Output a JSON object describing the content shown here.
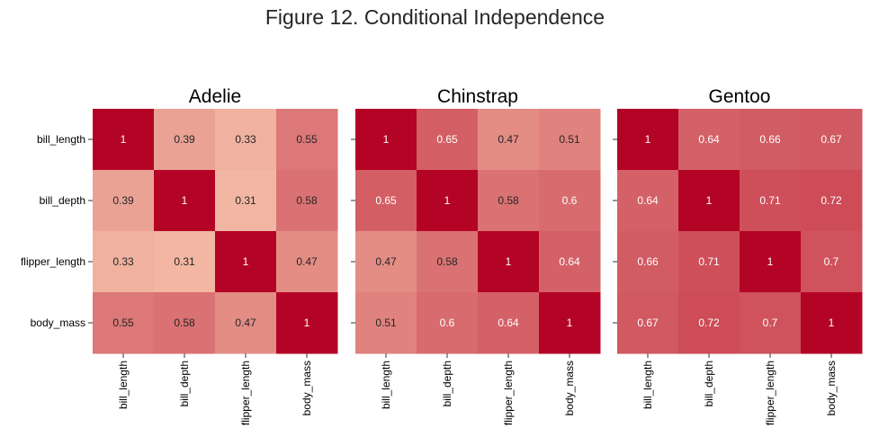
{
  "chart_data": {
    "type": "heatmap",
    "title": "Figure 12. Conditional Independence",
    "variables": [
      "bill_length",
      "bill_depth",
      "flipper_length",
      "body_mass"
    ],
    "colormap": {
      "low": "#f7c6ad",
      "high": "#b40426",
      "scale_min": 0.25,
      "scale_max": 1
    },
    "colorbar": false,
    "panels": [
      {
        "title": "Adelie",
        "matrix": [
          [
            1,
            0.39,
            0.33,
            0.55
          ],
          [
            0.39,
            1,
            0.31,
            0.58
          ],
          [
            0.33,
            0.31,
            1,
            0.47
          ],
          [
            0.55,
            0.58,
            0.47,
            1
          ]
        ]
      },
      {
        "title": "Chinstrap",
        "matrix": [
          [
            1,
            0.65,
            0.47,
            0.51
          ],
          [
            0.65,
            1,
            0.58,
            0.6
          ],
          [
            0.47,
            0.58,
            1,
            0.64
          ],
          [
            0.51,
            0.6,
            0.64,
            1
          ]
        ]
      },
      {
        "title": "Gentoo",
        "matrix": [
          [
            1,
            0.64,
            0.66,
            0.67
          ],
          [
            0.64,
            1,
            0.71,
            0.72
          ],
          [
            0.66,
            0.71,
            1,
            0.7
          ],
          [
            0.67,
            0.72,
            0.7,
            1
          ]
        ]
      }
    ]
  }
}
